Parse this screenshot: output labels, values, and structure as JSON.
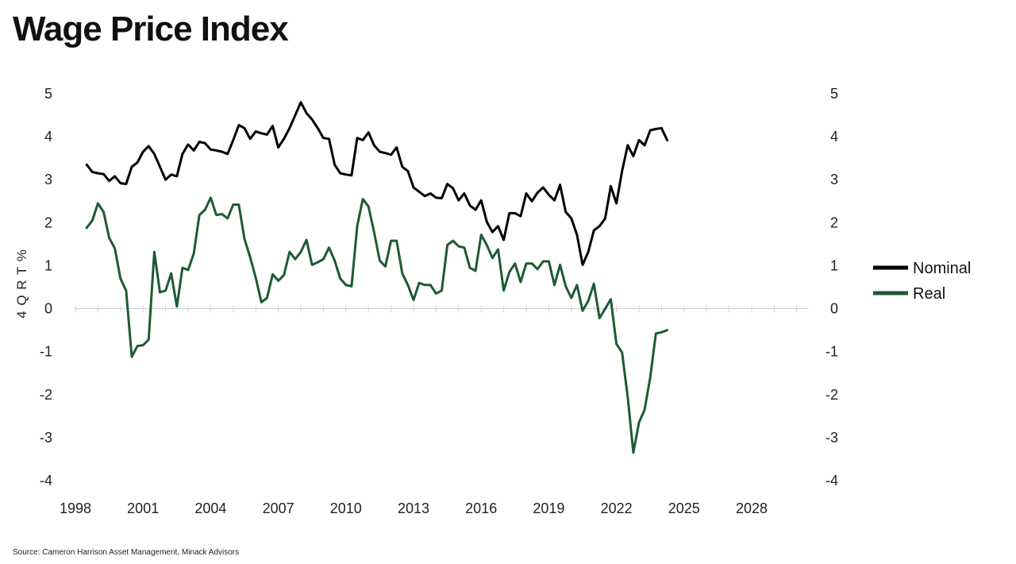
{
  "title": "Wage Price Index",
  "source": "Source: Cameron Harrison Asset Management, Minack Advisors",
  "chart_data": {
    "type": "line",
    "title": "Wage Price Index",
    "ylabel": "4 Q R T %",
    "xlabel": "",
    "xlim": [
      1998,
      2030.5
    ],
    "ylim": [
      -4,
      5
    ],
    "x_ticks": [
      "1998",
      "2001",
      "2004",
      "2007",
      "2010",
      "2013",
      "2016",
      "2019",
      "2022",
      "2025",
      "2028"
    ],
    "y_ticks": [
      "5",
      "4",
      "3",
      "2",
      "1",
      "0",
      "-1",
      "-2",
      "-3",
      "-4"
    ],
    "dual_axis": true,
    "grid": false,
    "zero_line": true,
    "legend_position": "right",
    "series": [
      {
        "name": "Nominal",
        "color": "#000000",
        "points": [
          [
            1998.5,
            3.35
          ],
          [
            1998.75,
            3.18
          ],
          [
            1999.0,
            3.15
          ],
          [
            1999.25,
            3.13
          ],
          [
            1999.5,
            2.97
          ],
          [
            1999.75,
            3.08
          ],
          [
            2000.0,
            2.92
          ],
          [
            2000.25,
            2.9
          ],
          [
            2000.5,
            3.3
          ],
          [
            2000.75,
            3.4
          ],
          [
            2001.0,
            3.65
          ],
          [
            2001.25,
            3.78
          ],
          [
            2001.5,
            3.6
          ],
          [
            2001.75,
            3.3
          ],
          [
            2002.0,
            3.0
          ],
          [
            2002.25,
            3.12
          ],
          [
            2002.5,
            3.08
          ],
          [
            2002.75,
            3.6
          ],
          [
            2003.0,
            3.82
          ],
          [
            2003.25,
            3.68
          ],
          [
            2003.5,
            3.88
          ],
          [
            2003.75,
            3.85
          ],
          [
            2004.0,
            3.7
          ],
          [
            2004.25,
            3.68
          ],
          [
            2004.5,
            3.65
          ],
          [
            2004.75,
            3.6
          ],
          [
            2005.0,
            3.92
          ],
          [
            2005.25,
            4.27
          ],
          [
            2005.5,
            4.2
          ],
          [
            2005.75,
            3.95
          ],
          [
            2006.0,
            4.12
          ],
          [
            2006.25,
            4.08
          ],
          [
            2006.5,
            4.05
          ],
          [
            2006.75,
            4.25
          ],
          [
            2007.0,
            3.75
          ],
          [
            2007.25,
            3.95
          ],
          [
            2007.5,
            4.2
          ],
          [
            2007.75,
            4.5
          ],
          [
            2008.0,
            4.8
          ],
          [
            2008.25,
            4.55
          ],
          [
            2008.5,
            4.4
          ],
          [
            2008.75,
            4.2
          ],
          [
            2009.0,
            3.97
          ],
          [
            2009.25,
            3.95
          ],
          [
            2009.5,
            3.35
          ],
          [
            2009.75,
            3.15
          ],
          [
            2010.0,
            3.12
          ],
          [
            2010.25,
            3.1
          ],
          [
            2010.5,
            3.97
          ],
          [
            2010.75,
            3.92
          ],
          [
            2011.0,
            4.1
          ],
          [
            2011.25,
            3.8
          ],
          [
            2011.5,
            3.65
          ],
          [
            2011.75,
            3.62
          ],
          [
            2012.0,
            3.58
          ],
          [
            2012.25,
            3.75
          ],
          [
            2012.5,
            3.3
          ],
          [
            2012.75,
            3.2
          ],
          [
            2013.0,
            2.82
          ],
          [
            2013.25,
            2.72
          ],
          [
            2013.5,
            2.62
          ],
          [
            2013.75,
            2.68
          ],
          [
            2014.0,
            2.58
          ],
          [
            2014.25,
            2.57
          ],
          [
            2014.5,
            2.9
          ],
          [
            2014.75,
            2.8
          ],
          [
            2015.0,
            2.52
          ],
          [
            2015.25,
            2.68
          ],
          [
            2015.5,
            2.4
          ],
          [
            2015.75,
            2.3
          ],
          [
            2016.0,
            2.52
          ],
          [
            2016.25,
            2.02
          ],
          [
            2016.5,
            1.78
          ],
          [
            2016.75,
            1.92
          ],
          [
            2017.0,
            1.6
          ],
          [
            2017.25,
            2.22
          ],
          [
            2017.5,
            2.22
          ],
          [
            2017.75,
            2.15
          ],
          [
            2018.0,
            2.68
          ],
          [
            2018.25,
            2.5
          ],
          [
            2018.5,
            2.7
          ],
          [
            2018.75,
            2.82
          ],
          [
            2019.0,
            2.65
          ],
          [
            2019.25,
            2.52
          ],
          [
            2019.5,
            2.88
          ],
          [
            2019.75,
            2.25
          ],
          [
            2020.0,
            2.1
          ],
          [
            2020.25,
            1.72
          ],
          [
            2020.5,
            1.02
          ],
          [
            2020.75,
            1.32
          ],
          [
            2021.0,
            1.82
          ],
          [
            2021.25,
            1.92
          ],
          [
            2021.5,
            2.1
          ],
          [
            2021.75,
            2.85
          ],
          [
            2022.0,
            2.45
          ],
          [
            2022.25,
            3.2
          ],
          [
            2022.5,
            3.8
          ],
          [
            2022.75,
            3.55
          ],
          [
            2023.0,
            3.92
          ],
          [
            2023.25,
            3.8
          ],
          [
            2023.5,
            4.15
          ],
          [
            2023.75,
            4.18
          ],
          [
            2024.0,
            4.2
          ],
          [
            2024.25,
            3.92
          ]
        ]
      },
      {
        "name": "Real",
        "color": "#1e5a32",
        "points": [
          [
            1998.5,
            1.88
          ],
          [
            1998.75,
            2.05
          ],
          [
            1999.0,
            2.45
          ],
          [
            1999.25,
            2.25
          ],
          [
            1999.5,
            1.65
          ],
          [
            1999.75,
            1.4
          ],
          [
            2000.0,
            0.7
          ],
          [
            2000.25,
            0.42
          ],
          [
            2000.5,
            -1.12
          ],
          [
            2000.75,
            -0.87
          ],
          [
            2001.0,
            -0.85
          ],
          [
            2001.25,
            -0.72
          ],
          [
            2001.5,
            1.32
          ],
          [
            2001.75,
            0.38
          ],
          [
            2002.0,
            0.42
          ],
          [
            2002.25,
            0.82
          ],
          [
            2002.5,
            0.05
          ],
          [
            2002.75,
            0.95
          ],
          [
            2003.0,
            0.9
          ],
          [
            2003.25,
            1.28
          ],
          [
            2003.5,
            2.18
          ],
          [
            2003.75,
            2.3
          ],
          [
            2004.0,
            2.58
          ],
          [
            2004.25,
            2.18
          ],
          [
            2004.5,
            2.2
          ],
          [
            2004.75,
            2.1
          ],
          [
            2005.0,
            2.42
          ],
          [
            2005.25,
            2.42
          ],
          [
            2005.5,
            1.62
          ],
          [
            2005.75,
            1.2
          ],
          [
            2006.0,
            0.72
          ],
          [
            2006.25,
            0.15
          ],
          [
            2006.5,
            0.25
          ],
          [
            2006.75,
            0.8
          ],
          [
            2007.0,
            0.65
          ],
          [
            2007.25,
            0.78
          ],
          [
            2007.5,
            1.32
          ],
          [
            2007.75,
            1.15
          ],
          [
            2008.0,
            1.32
          ],
          [
            2008.25,
            1.6
          ],
          [
            2008.5,
            1.02
          ],
          [
            2008.75,
            1.08
          ],
          [
            2009.0,
            1.15
          ],
          [
            2009.25,
            1.42
          ],
          [
            2009.5,
            1.12
          ],
          [
            2009.75,
            0.7
          ],
          [
            2010.0,
            0.55
          ],
          [
            2010.25,
            0.52
          ],
          [
            2010.5,
            1.92
          ],
          [
            2010.75,
            2.55
          ],
          [
            2011.0,
            2.38
          ],
          [
            2011.25,
            1.78
          ],
          [
            2011.5,
            1.12
          ],
          [
            2011.75,
            0.98
          ],
          [
            2012.0,
            1.58
          ],
          [
            2012.25,
            1.58
          ],
          [
            2012.5,
            0.82
          ],
          [
            2012.75,
            0.55
          ],
          [
            2013.0,
            0.2
          ],
          [
            2013.25,
            0.6
          ],
          [
            2013.5,
            0.55
          ],
          [
            2013.75,
            0.55
          ],
          [
            2014.0,
            0.35
          ],
          [
            2014.25,
            0.42
          ],
          [
            2014.5,
            1.48
          ],
          [
            2014.75,
            1.58
          ],
          [
            2015.0,
            1.45
          ],
          [
            2015.25,
            1.42
          ],
          [
            2015.5,
            0.95
          ],
          [
            2015.75,
            0.88
          ],
          [
            2016.0,
            1.72
          ],
          [
            2016.25,
            1.48
          ],
          [
            2016.5,
            1.18
          ],
          [
            2016.75,
            1.38
          ],
          [
            2017.0,
            0.42
          ],
          [
            2017.25,
            0.85
          ],
          [
            2017.5,
            1.05
          ],
          [
            2017.75,
            0.62
          ],
          [
            2018.0,
            1.05
          ],
          [
            2018.25,
            1.05
          ],
          [
            2018.5,
            0.92
          ],
          [
            2018.75,
            1.1
          ],
          [
            2019.0,
            1.1
          ],
          [
            2019.25,
            0.55
          ],
          [
            2019.5,
            1.02
          ],
          [
            2019.75,
            0.52
          ],
          [
            2020.0,
            0.25
          ],
          [
            2020.25,
            0.55
          ],
          [
            2020.5,
            -0.05
          ],
          [
            2020.75,
            0.18
          ],
          [
            2021.0,
            0.58
          ],
          [
            2021.25,
            -0.22
          ],
          [
            2021.5,
            0.0
          ],
          [
            2021.75,
            0.22
          ],
          [
            2022.0,
            -0.82
          ],
          [
            2022.25,
            -1.02
          ],
          [
            2022.5,
            -2.05
          ],
          [
            2022.75,
            -3.35
          ],
          [
            2023.0,
            -2.65
          ],
          [
            2023.25,
            -2.35
          ],
          [
            2023.5,
            -1.6
          ],
          [
            2023.75,
            -0.58
          ],
          [
            2024.0,
            -0.55
          ],
          [
            2024.25,
            -0.5
          ]
        ]
      }
    ]
  }
}
